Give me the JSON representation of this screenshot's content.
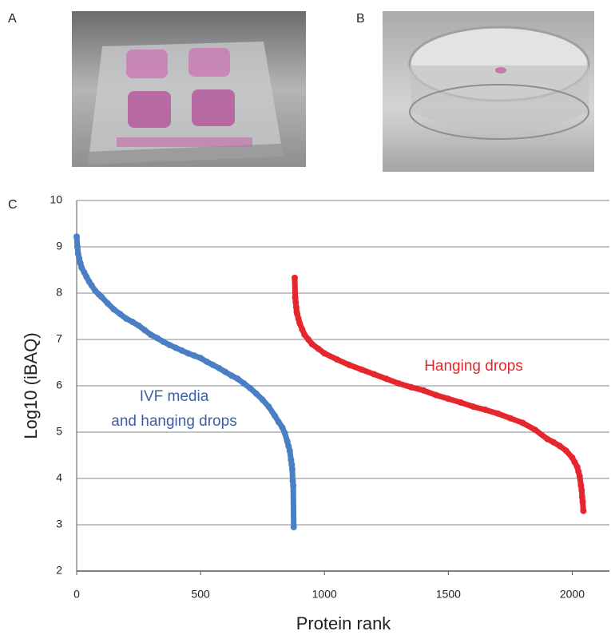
{
  "panel_labels": [
    "A",
    "B",
    "C"
  ],
  "chart_data": {
    "type": "scatter",
    "x_label": "Protein rank",
    "y_label": "Log10 (iBAQ)",
    "xlim": [
      0,
      2150
    ],
    "ylim": [
      2,
      10
    ],
    "xticks": [
      0,
      500,
      1000,
      1500,
      2000
    ],
    "yticks": [
      2,
      3,
      4,
      5,
      6,
      7,
      8,
      9,
      10
    ],
    "grid": true,
    "annotations": [
      {
        "lines": [
          "IVF media",
          "and hanging drops"
        ],
        "color": "#3b5fa9"
      },
      {
        "lines": [
          "Hanging drops"
        ],
        "color": "#e5262c"
      }
    ],
    "series": [
      {
        "color": "#4a7fc4",
        "x": [
          0,
          3,
          6,
          10,
          15,
          20,
          30,
          40,
          50,
          60,
          75,
          90,
          100,
          125,
          150,
          175,
          200,
          225,
          250,
          275,
          300,
          325,
          350,
          375,
          400,
          425,
          450,
          475,
          500,
          525,
          550,
          575,
          600,
          625,
          650,
          675,
          700,
          725,
          750,
          775,
          800,
          815,
          830,
          840,
          850,
          855,
          860,
          865,
          868,
          870,
          872,
          874,
          876
        ],
        "values": [
          9.22,
          9.0,
          8.85,
          8.75,
          8.65,
          8.55,
          8.45,
          8.35,
          8.25,
          8.17,
          8.05,
          7.97,
          7.92,
          7.78,
          7.65,
          7.55,
          7.45,
          7.38,
          7.3,
          7.2,
          7.1,
          7.03,
          6.95,
          6.88,
          6.82,
          6.76,
          6.7,
          6.65,
          6.6,
          6.52,
          6.45,
          6.38,
          6.3,
          6.22,
          6.15,
          6.05,
          5.95,
          5.83,
          5.7,
          5.55,
          5.35,
          5.22,
          5.1,
          4.98,
          4.8,
          4.7,
          4.6,
          4.4,
          4.3,
          4.2,
          3.95,
          3.85,
          2.95
        ]
      },
      {
        "color": "#e5262c",
        "x": [
          880,
          882,
          884,
          886,
          888,
          890,
          895,
          900,
          910,
          920,
          935,
          950,
          975,
          1000,
          1050,
          1100,
          1150,
          1200,
          1250,
          1300,
          1350,
          1400,
          1450,
          1500,
          1550,
          1600,
          1650,
          1700,
          1750,
          1800,
          1850,
          1900,
          1925,
          1950,
          1975,
          2000,
          2010,
          2020,
          2025,
          2030,
          2035,
          2038,
          2040,
          2042,
          2045
        ],
        "values": [
          8.33,
          7.9,
          7.8,
          7.7,
          7.6,
          7.55,
          7.45,
          7.35,
          7.22,
          7.1,
          7.0,
          6.9,
          6.8,
          6.7,
          6.57,
          6.45,
          6.35,
          6.25,
          6.15,
          6.05,
          5.97,
          5.9,
          5.8,
          5.72,
          5.64,
          5.55,
          5.48,
          5.4,
          5.3,
          5.2,
          5.05,
          4.85,
          4.78,
          4.7,
          4.6,
          4.45,
          4.35,
          4.25,
          4.15,
          4.05,
          3.85,
          3.75,
          3.6,
          3.5,
          3.3
        ]
      }
    ]
  }
}
